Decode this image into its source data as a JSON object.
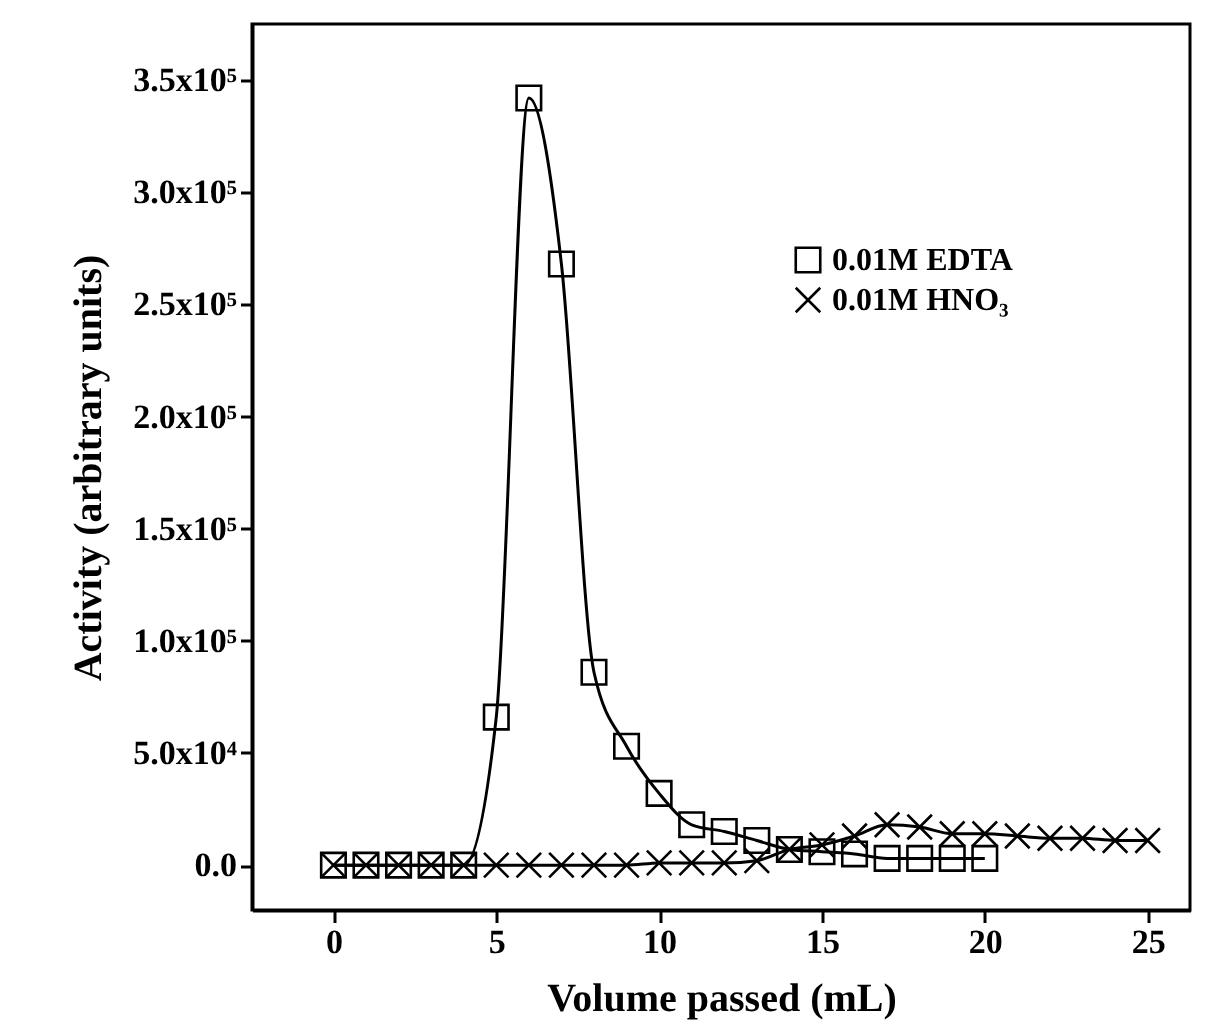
{
  "chart_data": {
    "type": "line",
    "xlabel": "Volume passed (mL)",
    "ylabel": "Activity (arbitrary units)",
    "xlim": [
      -2.5,
      26.3
    ],
    "xticks": [
      0,
      5,
      10,
      15,
      20,
      25
    ],
    "ylim": [
      -20000,
      375000
    ],
    "yticks": [
      {
        "value": 0,
        "label": "0.0"
      },
      {
        "value": 50000,
        "label": "5.0x10⁴"
      },
      {
        "value": 100000,
        "label": "1.0x10⁵"
      },
      {
        "value": 150000,
        "label": "1.5x10⁵"
      },
      {
        "value": 200000,
        "label": "2.0x10⁵"
      },
      {
        "value": 250000,
        "label": "2.5x10⁵"
      },
      {
        "value": 300000,
        "label": "3.0x10⁵"
      },
      {
        "value": 350000,
        "label": "3.5x10⁵"
      }
    ],
    "grid": false,
    "legend": "top right",
    "series": [
      {
        "name": "0.01M EDTA",
        "color": "#000000",
        "marker": "square",
        "x": [
          0,
          1,
          2,
          3,
          4,
          5,
          6,
          7,
          8,
          9,
          10,
          11,
          12,
          13,
          14,
          15,
          16,
          17,
          18,
          19,
          20
        ],
        "values": [
          0,
          0,
          0,
          0,
          0,
          66000,
          342000,
          268000,
          86000,
          53000,
          32000,
          18000,
          15000,
          11000,
          7000,
          6000,
          5000,
          3000,
          3000,
          3000,
          3000
        ]
      },
      {
        "name": "0.01M HNO₃",
        "color": "#000000",
        "marker": "cross",
        "x": [
          0,
          1,
          2,
          3,
          4,
          5,
          6,
          7,
          8,
          9,
          10,
          11,
          12,
          13,
          14,
          15,
          16,
          17,
          18,
          19,
          20,
          21,
          22,
          23,
          24,
          25
        ],
        "values": [
          0,
          0,
          0,
          0,
          0,
          0,
          0,
          0,
          0,
          0,
          1000,
          1000,
          1000,
          2000,
          7000,
          9000,
          13000,
          18000,
          17000,
          14000,
          14000,
          13000,
          12000,
          12000,
          11000,
          11000
        ]
      }
    ]
  }
}
